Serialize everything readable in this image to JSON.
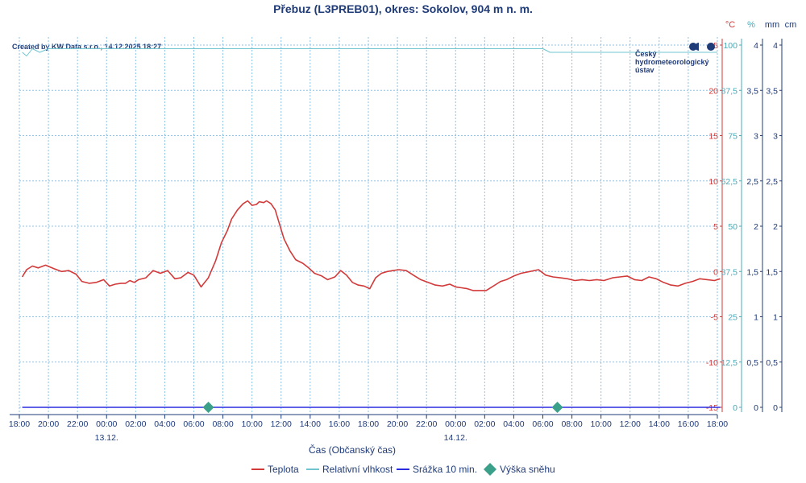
{
  "header": {
    "title": "Přebuz (L3PREB01), okres: Sokolov, 904 m n. m.",
    "credit": "Created by KW Data s.r.o., 14.12.2025 18:27"
  },
  "logo": {
    "lines": [
      "Český",
      "hydrometeorologický",
      "ústav"
    ]
  },
  "units": {
    "temperature": "°C",
    "humidity": "%",
    "precipitation": "mm",
    "snow": "cm"
  },
  "colors": {
    "temperature": "#d23a3a",
    "humidity": "#6fc4d0",
    "precipitation": "#2b2be0",
    "snow": "#3aa08a",
    "text": "#1f3b78"
  },
  "chart_data": {
    "type": "line",
    "title": "Přebuz (L3PREB01), okres: Sokolov, 904 m n. m.",
    "xlabel": "Čas (Občanský čas)",
    "x_ticks": [
      "18:00",
      "20:00",
      "22:00",
      "00:00",
      "02:00",
      "04:00",
      "06:00",
      "08:00",
      "10:00",
      "12:00",
      "14:00",
      "16:00",
      "18:00",
      "20:00",
      "22:00",
      "00:00",
      "02:00",
      "04:00",
      "06:00",
      "08:00",
      "10:00",
      "12:00",
      "14:00",
      "16:00",
      "18:00"
    ],
    "date_labels": [
      {
        "hour": 6,
        "label": "13.12."
      },
      {
        "hour": 30,
        "label": "14.12."
      }
    ],
    "y_axes": {
      "temperature": {
        "unit": "°C",
        "range": [
          -15,
          25
        ],
        "ticks": [
          "25",
          "20",
          "15",
          "10",
          "5",
          "0",
          "-5",
          "-10",
          "-15"
        ]
      },
      "humidity": {
        "unit": "%",
        "range": [
          25,
          100
        ],
        "ticks": [
          "100",
          "87,5",
          "75",
          "62,5",
          "50",
          "37,5",
          "25",
          "12,5",
          "0"
        ]
      },
      "precipitation": {
        "unit": "mm",
        "range": [
          0,
          4
        ],
        "ticks": [
          "4",
          "3,5",
          "3",
          "2,5",
          "2",
          "1,5",
          "1",
          "0,5",
          "0"
        ]
      },
      "snow": {
        "unit": "cm",
        "range": [
          0,
          4
        ],
        "ticks": [
          "4",
          "3,5",
          "3",
          "2,5",
          "2",
          "1,5",
          "1",
          "0,5",
          "0"
        ]
      }
    },
    "series": [
      {
        "name": "Teplota",
        "axis": "temperature",
        "hours": [
          0.2,
          0.5,
          0.9,
          1.3,
          1.8,
          2.4,
          2.9,
          3.4,
          3.9,
          4.3,
          4.8,
          5.3,
          5.8,
          6.2,
          6.6,
          7.0,
          7.3,
          7.6,
          7.9,
          8.2,
          8.7,
          9.2,
          9.7,
          10.2,
          10.7,
          11.1,
          11.6,
          12.0,
          12.5,
          13.0,
          13.5,
          13.9,
          14.3,
          14.6,
          15.0,
          15.4,
          15.7,
          16.0,
          16.3,
          16.5,
          16.8,
          17.0,
          17.3,
          17.6,
          17.9,
          18.2,
          18.6,
          19.0,
          19.5,
          19.9,
          20.3,
          20.8,
          21.2,
          21.7,
          22.1,
          22.5,
          22.9,
          23.3,
          23.7,
          24.1,
          24.5,
          24.9,
          25.3,
          25.7,
          26.1,
          26.6,
          27.1,
          27.6,
          28.1,
          28.6,
          29.1,
          29.6,
          30.0,
          30.4,
          30.8,
          31.2,
          31.7,
          32.1,
          32.5,
          32.8,
          33.1,
          33.5,
          34.0,
          34.5,
          35.1,
          35.7,
          36.2,
          36.7,
          37.2,
          37.7,
          38.2,
          38.7,
          39.2,
          39.7,
          40.2,
          40.8,
          41.3,
          41.8,
          42.3,
          42.8,
          43.3,
          43.8,
          44.3,
          44.8,
          45.3,
          45.8,
          46.3,
          46.8,
          47.3,
          47.8,
          48.2
        ],
        "values": [
          -0.6,
          0.2,
          0.6,
          0.4,
          0.7,
          0.3,
          0.0,
          0.1,
          -0.3,
          -1.1,
          -1.3,
          -1.2,
          -0.9,
          -1.6,
          -1.4,
          -1.3,
          -1.3,
          -1.0,
          -1.2,
          -0.9,
          -0.7,
          0.1,
          -0.2,
          0.1,
          -0.8,
          -0.7,
          -0.1,
          -0.4,
          -1.7,
          -0.7,
          1.2,
          3.2,
          4.5,
          5.8,
          6.8,
          7.5,
          7.8,
          7.3,
          7.4,
          7.7,
          7.6,
          7.8,
          7.5,
          6.8,
          5.2,
          3.6,
          2.3,
          1.3,
          0.9,
          0.4,
          -0.2,
          -0.5,
          -0.9,
          -0.6,
          0.1,
          -0.4,
          -1.2,
          -1.5,
          -1.6,
          -1.9,
          -0.7,
          -0.2,
          0.0,
          0.1,
          0.2,
          0.1,
          -0.4,
          -0.9,
          -1.2,
          -1.5,
          -1.6,
          -1.4,
          -1.7,
          -1.8,
          -1.9,
          -2.1,
          -2.1,
          -2.1,
          -1.7,
          -1.4,
          -1.1,
          -0.9,
          -0.5,
          -0.2,
          0.0,
          0.2,
          -0.4,
          -0.6,
          -0.7,
          -0.8,
          -1.0,
          -0.9,
          -1.0,
          -0.9,
          -1.0,
          -0.7,
          -0.6,
          -0.5,
          -0.9,
          -1.0,
          -0.6,
          -0.8,
          -1.2,
          -1.5,
          -1.6,
          -1.3,
          -1.1,
          -0.8,
          -0.9,
          -1.0,
          -0.8
        ]
      },
      {
        "name": "Relativní vlhkost",
        "axis": "humidity",
        "hours": [
          0.2,
          0.5,
          0.9,
          1.4,
          2.0,
          3.0,
          4.0,
          5.0,
          6.0,
          7.0,
          8.0,
          9.0,
          10.0,
          11.0,
          11.5,
          12.0,
          12.3,
          12.6,
          12.9,
          13.2,
          13.5,
          13.8,
          14.1,
          14.4,
          14.7,
          15.0,
          15.3,
          15.6,
          15.9,
          16.2,
          16.4,
          16.6,
          16.8,
          17.0,
          17.3,
          17.6,
          17.9,
          18.2,
          18.5,
          18.8,
          19.1,
          19.4,
          19.7,
          20.0,
          20.3,
          20.6,
          20.9,
          21.2,
          21.5,
          21.8,
          22.2,
          22.7,
          23.2,
          23.7,
          24.2,
          25.0,
          26.0,
          27.0,
          28.0,
          29.0,
          30.0,
          31.0,
          32.0,
          33.0,
          34.0,
          35.0,
          36.0,
          36.5,
          37.0,
          38.0,
          39.0,
          39.5,
          40.0,
          40.5,
          41.0,
          41.5,
          42.0,
          43.0,
          44.0,
          45.0,
          46.0,
          47.0,
          48.0
        ],
        "values": [
          98,
          97,
          99,
          98,
          99,
          99,
          99,
          99,
          99,
          99,
          99,
          99,
          99,
          99,
          99,
          99,
          99,
          99,
          99,
          99,
          99,
          99,
          99,
          99,
          99,
          99,
          99,
          99,
          99,
          99,
          99,
          99,
          99,
          99,
          99,
          99,
          99,
          99,
          99,
          99,
          99,
          99,
          99,
          99,
          99,
          99,
          99,
          99,
          99,
          99,
          99,
          99,
          99,
          99,
          99,
          99,
          99,
          99,
          99,
          99,
          99,
          99,
          99,
          99,
          99,
          99,
          99,
          98,
          98,
          98,
          98,
          98,
          98,
          98,
          98,
          98,
          98,
          98,
          98,
          98,
          98,
          98,
          98
        ]
      },
      {
        "name": "Srážka 10 min.",
        "axis": "precipitation",
        "hours": [
          0.2,
          48.2
        ],
        "values": [
          0,
          0
        ]
      },
      {
        "name": "Výška sněhu",
        "axis": "snow",
        "hours": [
          13.0,
          37.0
        ],
        "values": [
          0,
          0
        ]
      }
    ]
  },
  "legend": {
    "items": [
      {
        "label": "Teplota",
        "symbol": "line",
        "color": "#d23a3a"
      },
      {
        "label": "Relativní vlhkost",
        "symbol": "line",
        "color": "#6fc4d0"
      },
      {
        "label": "Srážka 10 min.",
        "symbol": "line",
        "color": "#2b2be0"
      },
      {
        "label": "Výška sněhu",
        "symbol": "diamond",
        "color": "#3aa08a"
      }
    ]
  }
}
